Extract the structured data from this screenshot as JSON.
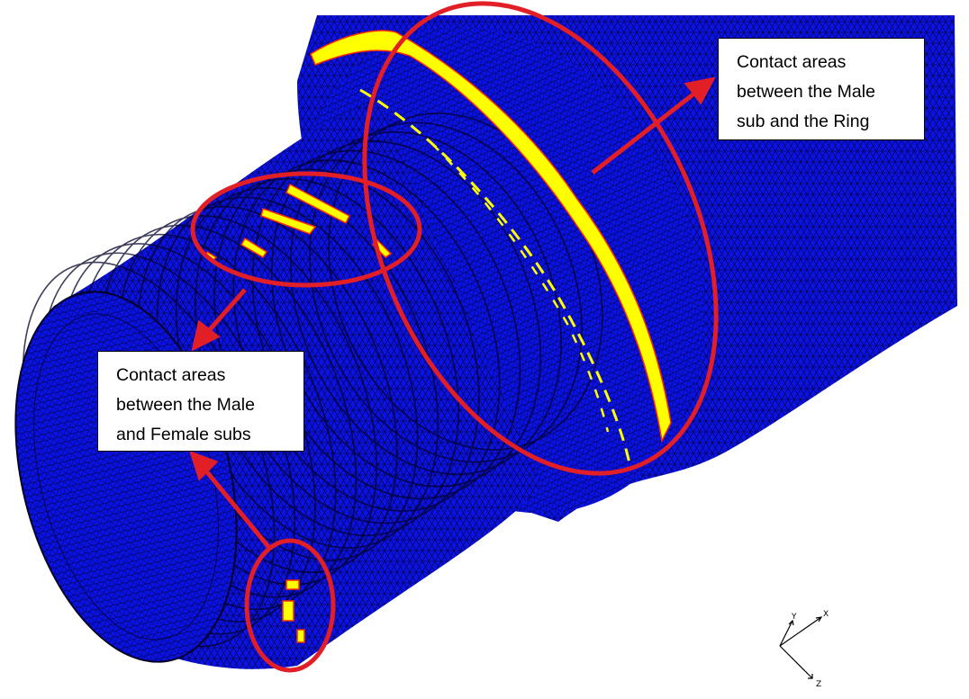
{
  "colors": {
    "mesh_body": "#0a12e6",
    "mesh_lines": "#000033",
    "contact": "#ffff00",
    "contact_edge": "#ff2a00",
    "annotation": "#e21e26",
    "background": "#ffffff"
  },
  "callouts": {
    "ring": {
      "lines": [
        "Contact areas",
        "between the Male",
        "sub and the Ring"
      ]
    },
    "subs": {
      "lines": [
        "Contact areas",
        "between the Male",
        "and Female subs"
      ]
    }
  },
  "triad": {
    "axes": [
      {
        "label": "Y",
        "icon": "y-axis-arrow-icon"
      },
      {
        "label": "X",
        "icon": "x-axis-arrow-icon"
      },
      {
        "label": "Z",
        "icon": "z-axis-arrow-icon"
      }
    ]
  }
}
